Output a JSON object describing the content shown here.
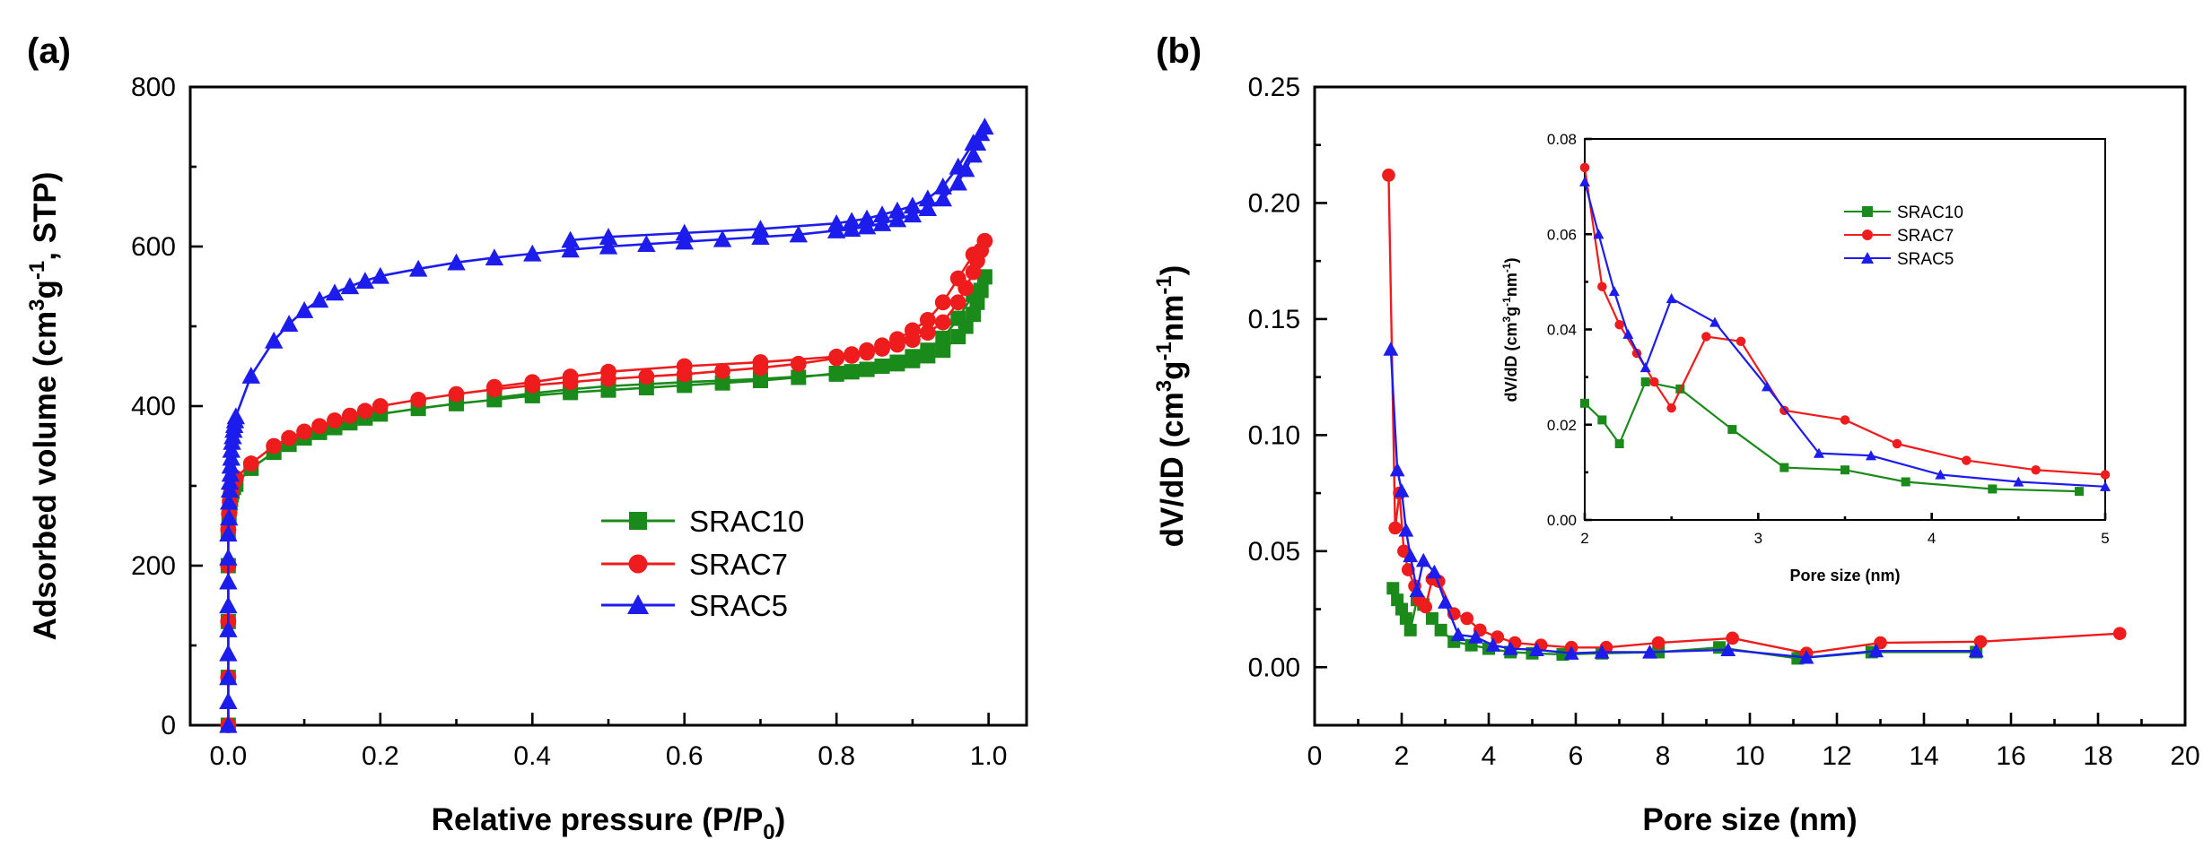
{
  "chart_data": [
    {
      "panel_label": "(a)",
      "type": "line",
      "xlabel_main": "Relative pressure (P/P",
      "xlabel_sub": "0",
      "xlabel_end": ")",
      "ylabel_pre": "Adsorbed volume (cm",
      "ylabel_sup1": "3",
      "ylabel_mid": "g",
      "ylabel_sup2": "-1",
      "ylabel_end": ", STP)",
      "xlim": [
        -0.05,
        1.05
      ],
      "ylim": [
        0,
        800
      ],
      "xticks": [
        "0.0",
        "0.2",
        "0.4",
        "0.6",
        "0.8",
        "1.0"
      ],
      "yticks": [
        "0",
        "200",
        "400",
        "600",
        "800"
      ],
      "legend_position": "center-right",
      "series": [
        {
          "name": "SRAC10",
          "color": "#1a8a1a",
          "marker": "square",
          "x": [
            0.0,
            0.0,
            0.0,
            0.0,
            0.0,
            0.001,
            0.002,
            0.003,
            0.004,
            0.005,
            0.007,
            0.01,
            0.03,
            0.06,
            0.08,
            0.1,
            0.12,
            0.14,
            0.16,
            0.18,
            0.2,
            0.25,
            0.3,
            0.35,
            0.4,
            0.45,
            0.5,
            0.55,
            0.6,
            0.65,
            0.7,
            0.75,
            0.8,
            0.82,
            0.84,
            0.86,
            0.88,
            0.9,
            0.92,
            0.94,
            0.96,
            0.97,
            0.98,
            0.985,
            0.99,
            0.995,
            0.98,
            0.96,
            0.94,
            0.92,
            0.9,
            0.88,
            0.86,
            0.84,
            0.82,
            0.8,
            0.7,
            0.6,
            0.5,
            0.45,
            0.4,
            0.35
          ],
          "y": [
            0,
            60,
            130,
            200,
            240,
            260,
            275,
            283,
            289,
            293,
            298,
            302,
            322,
            342,
            352,
            360,
            367,
            373,
            379,
            385,
            390,
            397,
            403,
            408,
            413,
            417,
            420,
            423,
            426,
            429,
            432,
            436,
            441,
            443,
            446,
            450,
            453,
            457,
            463,
            470,
            487,
            500,
            515,
            530,
            545,
            562,
            540,
            510,
            485,
            470,
            462,
            455,
            450,
            446,
            443,
            440,
            434,
            430,
            425,
            421,
            416,
            410
          ]
        },
        {
          "name": "SRAC7",
          "color": "#ee1c1c",
          "marker": "circle",
          "x": [
            0.0,
            0.0,
            0.0,
            0.0,
            0.0,
            0.001,
            0.002,
            0.003,
            0.004,
            0.005,
            0.007,
            0.01,
            0.03,
            0.06,
            0.08,
            0.1,
            0.12,
            0.14,
            0.16,
            0.18,
            0.2,
            0.25,
            0.3,
            0.35,
            0.4,
            0.45,
            0.5,
            0.55,
            0.6,
            0.65,
            0.7,
            0.75,
            0.8,
            0.82,
            0.84,
            0.86,
            0.88,
            0.9,
            0.92,
            0.94,
            0.96,
            0.97,
            0.98,
            0.985,
            0.99,
            0.995,
            0.98,
            0.96,
            0.94,
            0.92,
            0.9,
            0.88,
            0.86,
            0.84,
            0.82,
            0.8,
            0.7,
            0.6,
            0.5,
            0.45,
            0.4,
            0.35
          ],
          "y": [
            0,
            60,
            130,
            200,
            245,
            265,
            280,
            289,
            295,
            300,
            305,
            310,
            328,
            350,
            360,
            368,
            375,
            382,
            388,
            394,
            400,
            408,
            415,
            421,
            426,
            430,
            434,
            437,
            440,
            444,
            448,
            453,
            460,
            463,
            467,
            472,
            477,
            483,
            492,
            505,
            530,
            548,
            568,
            582,
            595,
            607,
            590,
            560,
            530,
            508,
            495,
            484,
            476,
            470,
            465,
            462,
            455,
            450,
            443,
            437,
            430,
            424
          ]
        },
        {
          "name": "SRAC5",
          "color": "#1c1ced",
          "marker": "triangle",
          "x": [
            0.0,
            0.0,
            0.0,
            0.0,
            0.0,
            0.0,
            0.0,
            0.0,
            0.0,
            0.001,
            0.001,
            0.002,
            0.002,
            0.003,
            0.003,
            0.004,
            0.004,
            0.005,
            0.006,
            0.007,
            0.008,
            0.009,
            0.01,
            0.03,
            0.06,
            0.08,
            0.1,
            0.12,
            0.14,
            0.16,
            0.18,
            0.2,
            0.25,
            0.3,
            0.35,
            0.4,
            0.45,
            0.5,
            0.55,
            0.6,
            0.65,
            0.7,
            0.75,
            0.8,
            0.82,
            0.84,
            0.86,
            0.88,
            0.9,
            0.92,
            0.94,
            0.96,
            0.97,
            0.98,
            0.985,
            0.99,
            0.995,
            0.98,
            0.96,
            0.94,
            0.92,
            0.9,
            0.88,
            0.86,
            0.84,
            0.82,
            0.8,
            0.7,
            0.6,
            0.5,
            0.45
          ],
          "y": [
            0,
            30,
            60,
            90,
            120,
            150,
            180,
            210,
            240,
            260,
            280,
            295,
            305,
            315,
            325,
            335,
            345,
            355,
            362,
            370,
            376,
            382,
            387,
            438,
            482,
            503,
            520,
            533,
            542,
            550,
            557,
            563,
            572,
            580,
            586,
            591,
            596,
            600,
            603,
            606,
            609,
            612,
            615,
            620,
            622,
            625,
            629,
            634,
            640,
            648,
            660,
            680,
            697,
            715,
            730,
            742,
            750,
            730,
            700,
            675,
            660,
            651,
            645,
            640,
            635,
            632,
            629,
            622,
            617,
            612,
            608
          ]
        }
      ]
    },
    {
      "panel_label": "(b)",
      "type": "line",
      "xlabel": "Pore size (nm)",
      "ylabel_pre": "dV/dD (cm",
      "ylabel_sup1": "3",
      "ylabel_mid": "g",
      "ylabel_sup2": "-1",
      "ylabel_mid2": "nm",
      "ylabel_sup3": "-1",
      "ylabel_end": ")",
      "xlim": [
        0,
        20
      ],
      "ylim": [
        -0.025,
        0.25
      ],
      "xticks": [
        "0",
        "2",
        "4",
        "6",
        "8",
        "10",
        "12",
        "14",
        "16",
        "18",
        "20"
      ],
      "yticks": [
        "0.00",
        "0.05",
        "0.10",
        "0.15",
        "0.20",
        "0.25"
      ],
      "series": [
        {
          "name": "SRAC10",
          "color": "#1a8a1a",
          "marker": "square",
          "x": [
            1.8,
            1.9,
            2.0,
            2.1,
            2.2,
            2.35,
            2.5,
            2.7,
            2.9,
            3.2,
            3.6,
            4.0,
            4.5,
            5.0,
            5.7,
            6.6,
            7.9,
            9.3,
            11.1,
            12.8,
            15.2
          ],
          "y": [
            0.034,
            0.029,
            0.025,
            0.021,
            0.016,
            0.029,
            0.027,
            0.021,
            0.016,
            0.011,
            0.0095,
            0.008,
            0.0065,
            0.006,
            0.0055,
            0.006,
            0.0065,
            0.0085,
            0.0038,
            0.0065,
            0.0065
          ]
        },
        {
          "name": "SRAC7",
          "color": "#ee1c1c",
          "marker": "circle",
          "x": [
            1.7,
            1.85,
            1.95,
            2.05,
            2.15,
            2.3,
            2.4,
            2.55,
            2.7,
            2.85,
            3.2,
            3.5,
            3.8,
            4.2,
            4.6,
            5.2,
            5.9,
            6.7,
            7.9,
            9.6,
            11.3,
            13.0,
            15.3,
            18.5
          ],
          "y": [
            0.212,
            0.06,
            0.075,
            0.05,
            0.042,
            0.035,
            0.029,
            0.026,
            0.038,
            0.037,
            0.023,
            0.021,
            0.016,
            0.013,
            0.0105,
            0.0095,
            0.0085,
            0.0085,
            0.0105,
            0.0125,
            0.006,
            0.0105,
            0.011,
            0.0145
          ]
        },
        {
          "name": "SRAC5",
          "color": "#1c1ced",
          "marker": "triangle",
          "x": [
            1.75,
            1.9,
            2.0,
            2.1,
            2.2,
            2.35,
            2.5,
            2.75,
            3.0,
            3.3,
            3.7,
            4.1,
            4.5,
            5.1,
            5.9,
            6.6,
            7.7,
            9.5,
            11.3,
            12.9,
            15.2
          ],
          "y": [
            0.137,
            0.085,
            0.076,
            0.059,
            0.048,
            0.033,
            0.046,
            0.041,
            0.028,
            0.014,
            0.013,
            0.0095,
            0.008,
            0.0075,
            0.006,
            0.0065,
            0.0065,
            0.0075,
            0.0042,
            0.007,
            0.007
          ]
        }
      ],
      "inset": {
        "xlabel": "Pore size (nm)",
        "ylabel_pre": "dV/dD (cm",
        "ylabel_sup1": "3",
        "ylabel_mid": "g",
        "ylabel_sup2": "-1",
        "ylabel_mid2": "nm",
        "ylabel_sup3": "-1",
        "ylabel_end": ")",
        "xlim": [
          2,
          5
        ],
        "ylim": [
          0,
          0.08
        ],
        "xticks": [
          "2",
          "3",
          "4",
          "5"
        ],
        "yticks": [
          "0.00",
          "0.02",
          "0.04",
          "0.06",
          "0.08"
        ],
        "legend_position": "upper-center",
        "series": [
          {
            "name": "SRAC10",
            "color": "#1a8a1a",
            "marker": "square",
            "x": [
              2.0,
              2.1,
              2.2,
              2.35,
              2.55,
              2.85,
              3.15,
              3.5,
              3.85,
              4.35,
              4.85
            ],
            "y": [
              0.0245,
              0.021,
              0.016,
              0.029,
              0.0275,
              0.019,
              0.011,
              0.0105,
              0.008,
              0.0065,
              0.006
            ]
          },
          {
            "name": "SRAC7",
            "color": "#ee1c1c",
            "marker": "circle",
            "x": [
              2.0,
              2.1,
              2.2,
              2.3,
              2.4,
              2.5,
              2.7,
              2.9,
              3.15,
              3.5,
              3.8,
              4.2,
              4.6,
              5.0
            ],
            "y": [
              0.074,
              0.049,
              0.041,
              0.035,
              0.029,
              0.0235,
              0.0385,
              0.0375,
              0.023,
              0.021,
              0.016,
              0.0125,
              0.0105,
              0.0095
            ]
          },
          {
            "name": "SRAC5",
            "color": "#1c1ced",
            "marker": "triangle",
            "x": [
              2.0,
              2.08,
              2.17,
              2.25,
              2.35,
              2.5,
              2.75,
              3.05,
              3.35,
              3.65,
              4.05,
              4.5,
              5.0
            ],
            "y": [
              0.071,
              0.06,
              0.048,
              0.039,
              0.032,
              0.0465,
              0.0415,
              0.028,
              0.014,
              0.0135,
              0.0095,
              0.008,
              0.007
            ]
          }
        ]
      }
    }
  ]
}
